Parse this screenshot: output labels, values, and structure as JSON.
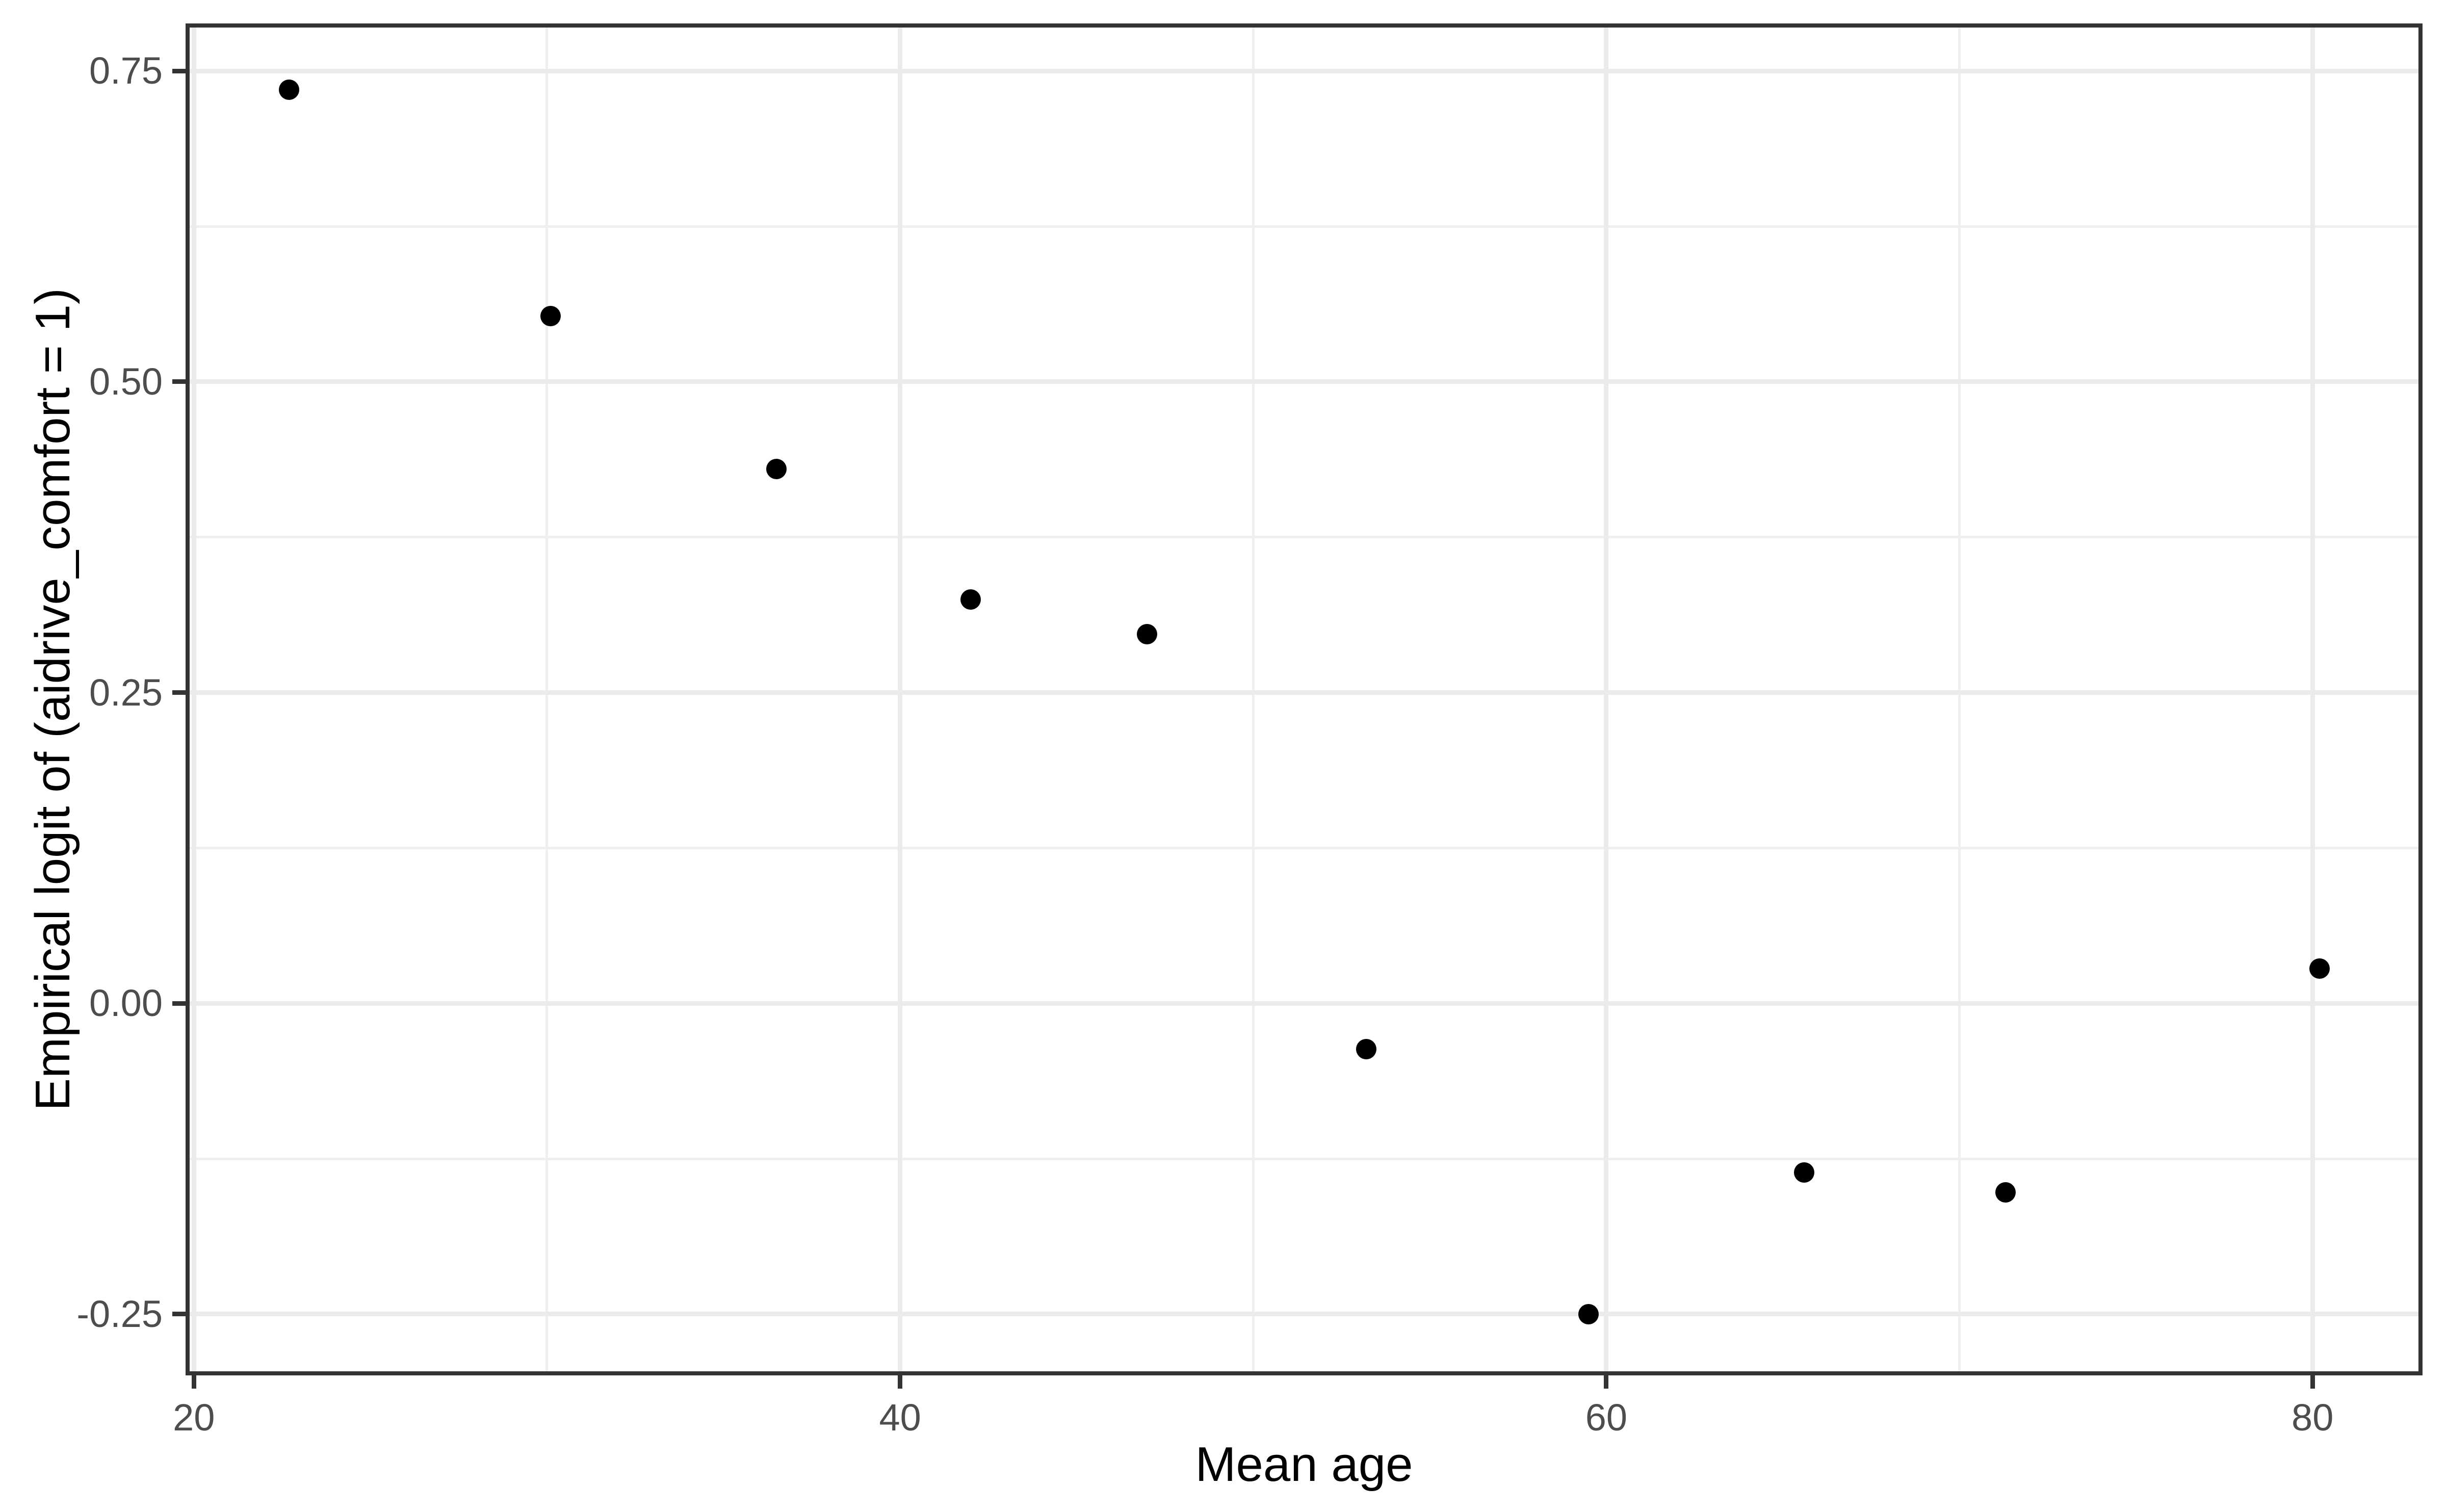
{
  "figure": {
    "x_axis_title": "Mean age",
    "y_axis_title": "Empirical logit of (aidrive_comfort = 1)"
  },
  "chart_data": {
    "type": "scatter",
    "title": "",
    "xlabel": "Mean age",
    "ylabel": "Empirical logit of (aidrive_comfort = 1)",
    "points": [
      {
        "x": 22.7,
        "y": 0.735
      },
      {
        "x": 30.1,
        "y": 0.553
      },
      {
        "x": 36.5,
        "y": 0.43
      },
      {
        "x": 42.0,
        "y": 0.325
      },
      {
        "x": 47.0,
        "y": 0.297
      },
      {
        "x": 53.2,
        "y": -0.037
      },
      {
        "x": 59.5,
        "y": -0.25
      },
      {
        "x": 65.6,
        "y": -0.136
      },
      {
        "x": 71.3,
        "y": -0.152
      },
      {
        "x": 80.2,
        "y": 0.028
      }
    ],
    "x_ticks": [
      {
        "value": 20,
        "label": "20"
      },
      {
        "value": 40,
        "label": "40"
      },
      {
        "value": 60,
        "label": "60"
      },
      {
        "value": 80,
        "label": "80"
      }
    ],
    "y_ticks": [
      {
        "value": 0.75,
        "label": "0.75"
      },
      {
        "value": 0.5,
        "label": "0.50"
      },
      {
        "value": 0.25,
        "label": "0.25"
      },
      {
        "value": 0.0,
        "label": "0.00"
      },
      {
        "value": -0.25,
        "label": "-0.25"
      }
    ],
    "x_minor_gridlines": [
      30,
      50,
      70
    ],
    "y_minor_gridlines": [
      0.625,
      0.375,
      0.125,
      -0.125
    ],
    "xlim": [
      19.88,
      83.0
    ],
    "ylim": [
      -0.296,
      0.785
    ],
    "grid": true,
    "legend_position": "none",
    "colors": {
      "point": "#000000",
      "grid_major": "#EBEBEB",
      "grid_minor": "#EFEFEF",
      "panel_border": "#333333",
      "tick_mark": "#333333",
      "tick_label": "#4D4D4D",
      "axis_title": "#000000",
      "panel_background": "#FFFFFF",
      "figure_background": "#FFFFFF"
    }
  }
}
